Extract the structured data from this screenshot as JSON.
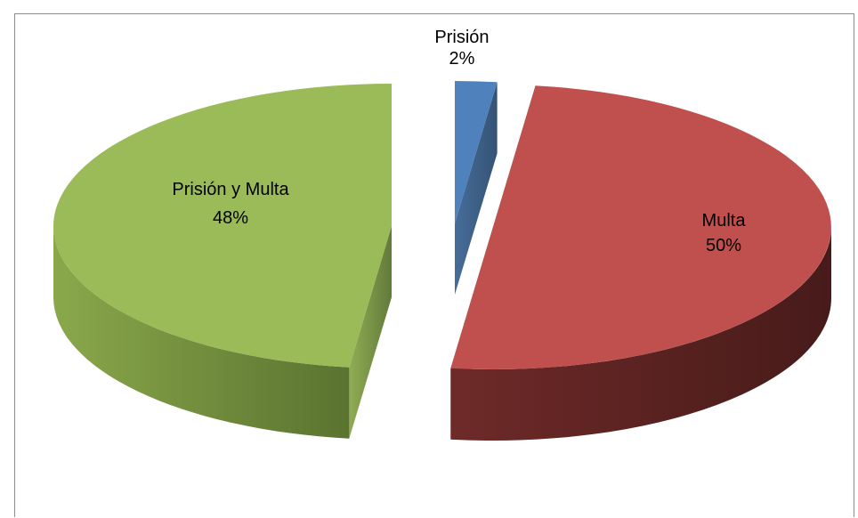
{
  "chart_data": {
    "type": "pie",
    "style": "3d-exploded",
    "title": "",
    "legend": "none",
    "slices": [
      {
        "name": "Prisión",
        "value": 2,
        "label": "2%",
        "color": "#4f81bd"
      },
      {
        "name": "Multa",
        "value": 50,
        "label": "50%",
        "color": "#c0504d"
      },
      {
        "name": "Prisión y Multa",
        "value": 48,
        "label": "48%",
        "color": "#9bbb59"
      }
    ]
  }
}
